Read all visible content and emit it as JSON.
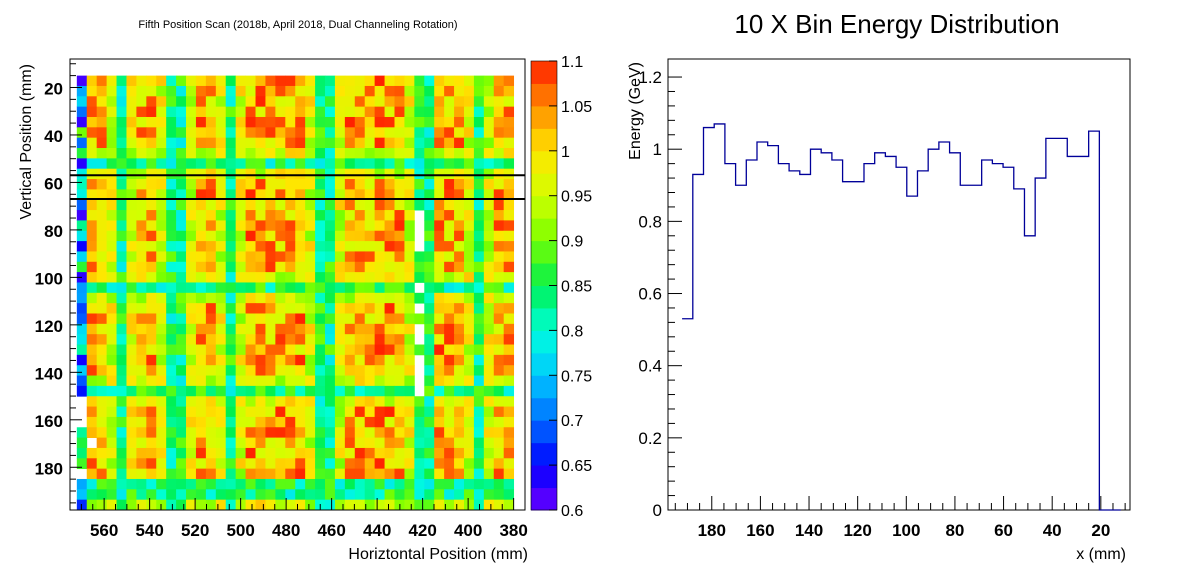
{
  "chart_data": [
    {
      "type": "heatmap",
      "title": "Fifth Position Scan (2018b, April 2018, Dual Channeling Rotation)",
      "xlabel": "Horiztontal Position (mm)",
      "ylabel": "Vertical Position (mm)",
      "xlim": [
        575,
        375
      ],
      "ylim": [
        198,
        8
      ],
      "xticks": [
        560,
        540,
        520,
        500,
        480,
        460,
        440,
        420,
        400,
        380
      ],
      "yticks": [
        20,
        40,
        60,
        80,
        100,
        120,
        140,
        160,
        180
      ],
      "colorbar": {
        "range": [
          0.6,
          1.1
        ],
        "ticks": [
          "1.1",
          "1.05",
          "1",
          "0.95",
          "0.9",
          "0.85",
          "0.8",
          "0.75",
          "0.7",
          "0.65",
          "0.6"
        ]
      },
      "selection_lines_y": [
        57,
        67
      ],
      "grid": {
        "x_range": [
          572,
          380
        ],
        "y_range": [
          15,
          198
        ],
        "cols": 44,
        "rows": 42,
        "pitch_x_mm": 4.4,
        "pitch_y_mm": 4.4,
        "cell_pattern": "high-response blocks separated by low-response channels; red ~1.08, yellow ~0.97, green ~0.87, cyan ~0.78, blue/purple 0.6–0.7 near left edge",
        "empty_cells": "some cells near x≈566 y≈155–185 and x≈420 y≈70–150 are blank"
      }
    },
    {
      "type": "line",
      "title": "10 X Bin Energy Distribution",
      "xlabel": "x (mm)",
      "ylabel": "Energy (GeV)",
      "xlim": [
        198,
        8
      ],
      "ylim": [
        0,
        1.25
      ],
      "xticks": [
        "180",
        "160",
        "140",
        "120",
        "100",
        "80",
        "60",
        "40",
        "20"
      ],
      "yticks": [
        "0",
        "0.2",
        "0.4",
        "0.6",
        "0.8",
        "1",
        "1.2"
      ],
      "step_width_mm": 4.4,
      "x": [
        190.0,
        185.6,
        181.2,
        176.8,
        172.4,
        168.0,
        163.6,
        159.2,
        154.8,
        150.4,
        146.0,
        141.6,
        137.2,
        132.8,
        128.4,
        124.0,
        119.6,
        115.2,
        110.8,
        106.4,
        102.0,
        97.6,
        93.2,
        88.8,
        84.4,
        80.0,
        75.6,
        71.2,
        66.8,
        62.4,
        58.0,
        53.6,
        49.2,
        44.8,
        40.4,
        36.0,
        31.6,
        27.2,
        22.8,
        18.4,
        14.0
      ],
      "y": [
        0.53,
        0.93,
        1.06,
        1.07,
        0.96,
        0.9,
        0.97,
        1.02,
        1.01,
        0.96,
        0.94,
        0.93,
        1.0,
        0.99,
        0.97,
        0.91,
        0.91,
        0.96,
        0.99,
        0.98,
        0.95,
        0.87,
        0.94,
        1.0,
        1.02,
        0.99,
        0.9,
        0.9,
        0.97,
        0.96,
        0.95,
        0.89,
        0.76,
        0.92,
        1.03,
        1.03,
        0.98,
        0.98,
        1.05,
        0.0,
        0.0
      ],
      "line_color": "#000099"
    }
  ]
}
